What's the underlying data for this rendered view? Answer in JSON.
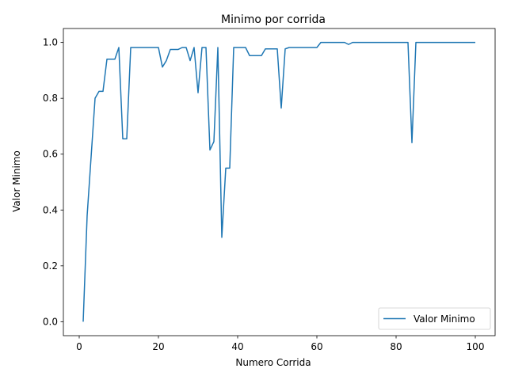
{
  "chart_data": {
    "type": "line",
    "title": "Minimo por corrida",
    "xlabel": "Numero Corrida",
    "ylabel": "Valor Minimo",
    "xlim": [
      -4,
      105
    ],
    "ylim": [
      -0.05,
      1.05
    ],
    "xticks": [
      0,
      20,
      40,
      60,
      80,
      100
    ],
    "yticks": [
      0.0,
      0.2,
      0.4,
      0.6,
      0.8,
      1.0
    ],
    "xtick_labels": [
      "0",
      "20",
      "40",
      "60",
      "80",
      "100"
    ],
    "ytick_labels": [
      "0.0",
      "0.2",
      "0.4",
      "0.6",
      "0.8",
      "1.0"
    ],
    "grid": false,
    "legend_position": "lower-right",
    "series_color": "#1f77b4",
    "series": [
      {
        "name": "Valor Minimo",
        "x": [
          1,
          2,
          3,
          4,
          5,
          6,
          7,
          8,
          9,
          10,
          11,
          12,
          13,
          14,
          15,
          16,
          17,
          18,
          19,
          20,
          21,
          22,
          23,
          24,
          25,
          26,
          27,
          28,
          29,
          30,
          31,
          32,
          33,
          34,
          35,
          36,
          37,
          38,
          39,
          40,
          41,
          42,
          43,
          44,
          45,
          46,
          47,
          48,
          49,
          50,
          51,
          52,
          53,
          54,
          55,
          56,
          57,
          58,
          59,
          60,
          61,
          62,
          63,
          64,
          65,
          66,
          67,
          68,
          69,
          70,
          71,
          72,
          73,
          74,
          75,
          76,
          77,
          78,
          79,
          80,
          81,
          82,
          83,
          84,
          85,
          86,
          87,
          88,
          89,
          90,
          91,
          92,
          93,
          94,
          95,
          96,
          97,
          98,
          99,
          100
        ],
        "values": [
          0.0,
          0.38,
          0.59,
          0.8,
          0.825,
          0.825,
          0.94,
          0.94,
          0.94,
          0.982,
          0.655,
          0.655,
          0.982,
          0.982,
          0.982,
          0.982,
          0.982,
          0.982,
          0.982,
          0.982,
          0.912,
          0.935,
          0.975,
          0.975,
          0.975,
          0.982,
          0.982,
          0.935,
          0.982,
          0.82,
          0.982,
          0.982,
          0.615,
          0.645,
          0.982,
          0.302,
          0.55,
          0.55,
          0.982,
          0.982,
          0.982,
          0.982,
          0.953,
          0.953,
          0.953,
          0.953,
          0.977,
          0.977,
          0.977,
          0.977,
          0.765,
          0.977,
          0.982,
          0.982,
          0.982,
          0.982,
          0.982,
          0.982,
          0.982,
          0.982,
          1.0,
          1.0,
          1.0,
          1.0,
          1.0,
          1.0,
          1.0,
          0.993,
          1.0,
          1.0,
          1.0,
          1.0,
          1.0,
          1.0,
          1.0,
          1.0,
          1.0,
          1.0,
          1.0,
          1.0,
          1.0,
          1.0,
          1.0,
          0.641,
          1.0,
          1.0,
          1.0,
          1.0,
          1.0,
          1.0,
          1.0,
          1.0,
          1.0,
          1.0,
          1.0,
          1.0,
          1.0,
          1.0,
          1.0,
          1.0
        ]
      }
    ]
  }
}
